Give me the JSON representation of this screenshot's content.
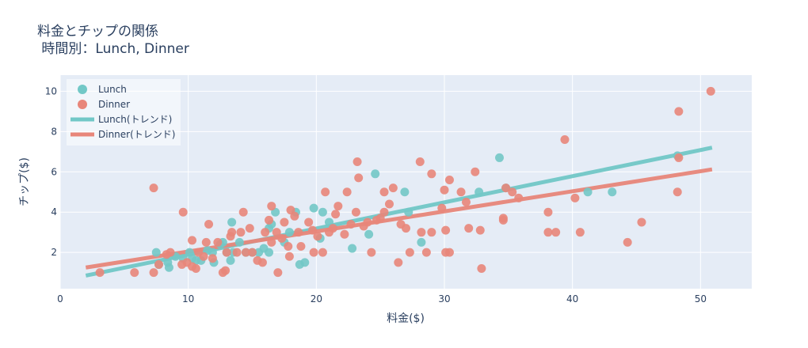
{
  "chart_data": {
    "type": "scatter",
    "title_line1": "料金とチップの関係",
    "title_line2": " 時間別：Lunch, Dinner",
    "xlabel": "料金($)",
    "ylabel": "チップ($)",
    "xlim": [
      0,
      54
    ],
    "ylim": [
      0.2,
      10.8
    ],
    "x_ticks": [
      0,
      10,
      20,
      30,
      40,
      50
    ],
    "y_ticks": [
      2,
      4,
      6,
      8,
      10
    ],
    "grid": true,
    "legend_position": "top-left",
    "plot_bg": "#e5ecf6",
    "series": [
      {
        "name": "Lunch",
        "color": "#72c8c7",
        "points": [
          [
            7.5,
            2.0
          ],
          [
            7.7,
            1.4
          ],
          [
            8.4,
            1.5
          ],
          [
            8.5,
            1.25
          ],
          [
            9.0,
            1.8
          ],
          [
            9.6,
            1.7
          ],
          [
            10.1,
            2.0
          ],
          [
            10.3,
            1.7
          ],
          [
            10.6,
            1.6
          ],
          [
            11.0,
            1.6
          ],
          [
            11.5,
            2.1
          ],
          [
            11.9,
            2.0
          ],
          [
            12.0,
            1.5
          ],
          [
            12.5,
            2.4
          ],
          [
            12.7,
            2.5
          ],
          [
            13.0,
            2.0
          ],
          [
            13.3,
            1.6
          ],
          [
            13.4,
            3.5
          ],
          [
            13.5,
            2.0
          ],
          [
            14.0,
            2.5
          ],
          [
            14.5,
            2.0
          ],
          [
            15.0,
            2.0
          ],
          [
            15.5,
            2.0
          ],
          [
            15.9,
            2.2
          ],
          [
            16.3,
            2.0
          ],
          [
            16.3,
            3.2
          ],
          [
            16.5,
            3.4
          ],
          [
            16.8,
            4.0
          ],
          [
            17.5,
            2.5
          ],
          [
            17.9,
            3.0
          ],
          [
            18.4,
            4.0
          ],
          [
            18.7,
            1.4
          ],
          [
            19.1,
            1.5
          ],
          [
            19.8,
            4.2
          ],
          [
            20.3,
            2.7
          ],
          [
            20.5,
            4.0
          ],
          [
            21.0,
            3.5
          ],
          [
            22.8,
            2.2
          ],
          [
            24.1,
            2.9
          ],
          [
            24.6,
            5.9
          ],
          [
            26.9,
            5.0
          ],
          [
            27.2,
            4.0
          ],
          [
            28.2,
            2.5
          ],
          [
            32.7,
            5.0
          ],
          [
            34.3,
            6.7
          ],
          [
            34.8,
            5.2
          ],
          [
            41.2,
            5.0
          ],
          [
            43.1,
            5.0
          ],
          [
            48.2,
            6.8
          ]
        ]
      },
      {
        "name": "Dinner",
        "color": "#e8867a",
        "points": [
          [
            3.1,
            1.0
          ],
          [
            5.8,
            1.0
          ],
          [
            7.3,
            5.2
          ],
          [
            7.3,
            1.0
          ],
          [
            7.7,
            1.4
          ],
          [
            8.3,
            1.9
          ],
          [
            8.6,
            2.0
          ],
          [
            9.5,
            1.4
          ],
          [
            9.6,
            4.0
          ],
          [
            9.9,
            1.5
          ],
          [
            10.3,
            2.6
          ],
          [
            10.3,
            1.3
          ],
          [
            10.6,
            1.2
          ],
          [
            10.8,
            2.0
          ],
          [
            11.2,
            1.8
          ],
          [
            11.4,
            2.5
          ],
          [
            11.6,
            3.4
          ],
          [
            11.9,
            1.7
          ],
          [
            12.3,
            2.5
          ],
          [
            12.7,
            1.0
          ],
          [
            12.9,
            1.1
          ],
          [
            13.0,
            2.0
          ],
          [
            13.3,
            2.8
          ],
          [
            13.4,
            3.0
          ],
          [
            13.8,
            2.0
          ],
          [
            14.1,
            3.0
          ],
          [
            14.3,
            4.0
          ],
          [
            14.5,
            2.0
          ],
          [
            14.8,
            3.2
          ],
          [
            15.0,
            2.0
          ],
          [
            15.4,
            1.6
          ],
          [
            15.8,
            1.5
          ],
          [
            16.0,
            3.0
          ],
          [
            16.3,
            3.6
          ],
          [
            16.5,
            2.5
          ],
          [
            16.5,
            4.3
          ],
          [
            16.9,
            3.0
          ],
          [
            17.0,
            1.0
          ],
          [
            17.3,
            2.7
          ],
          [
            17.5,
            3.5
          ],
          [
            17.8,
            2.3
          ],
          [
            17.9,
            1.8
          ],
          [
            18.0,
            4.1
          ],
          [
            18.3,
            3.8
          ],
          [
            18.6,
            3.0
          ],
          [
            18.8,
            2.3
          ],
          [
            19.4,
            3.5
          ],
          [
            19.7,
            3.1
          ],
          [
            19.8,
            2.0
          ],
          [
            20.1,
            2.8
          ],
          [
            20.5,
            2.0
          ],
          [
            20.7,
            5.0
          ],
          [
            21.0,
            3.0
          ],
          [
            21.3,
            3.2
          ],
          [
            21.5,
            3.9
          ],
          [
            21.7,
            4.3
          ],
          [
            22.2,
            2.9
          ],
          [
            22.4,
            5.0
          ],
          [
            22.7,
            3.4
          ],
          [
            23.1,
            4.0
          ],
          [
            23.2,
            6.5
          ],
          [
            23.3,
            5.7
          ],
          [
            23.7,
            3.3
          ],
          [
            24.0,
            3.5
          ],
          [
            24.3,
            2.0
          ],
          [
            24.7,
            3.6
          ],
          [
            25.0,
            3.7
          ],
          [
            25.3,
            4.0
          ],
          [
            25.3,
            5.0
          ],
          [
            25.7,
            4.4
          ],
          [
            26.0,
            5.2
          ],
          [
            26.4,
            1.5
          ],
          [
            26.6,
            3.4
          ],
          [
            27.0,
            3.2
          ],
          [
            27.3,
            2.0
          ],
          [
            28.1,
            6.5
          ],
          [
            28.2,
            3.0
          ],
          [
            28.6,
            2.0
          ],
          [
            29.0,
            5.9
          ],
          [
            29.0,
            3.0
          ],
          [
            29.8,
            4.2
          ],
          [
            30.0,
            5.1
          ],
          [
            30.1,
            3.1
          ],
          [
            30.1,
            2.0
          ],
          [
            30.4,
            5.6
          ],
          [
            30.4,
            2.0
          ],
          [
            31.3,
            5.0
          ],
          [
            31.7,
            4.5
          ],
          [
            31.9,
            3.2
          ],
          [
            32.4,
            6.0
          ],
          [
            32.8,
            3.1
          ],
          [
            32.9,
            1.2
          ],
          [
            34.6,
            3.6
          ],
          [
            34.6,
            3.7
          ],
          [
            34.8,
            5.2
          ],
          [
            35.3,
            5.0
          ],
          [
            35.8,
            4.7
          ],
          [
            38.1,
            4.0
          ],
          [
            38.1,
            3.0
          ],
          [
            38.7,
            3.0
          ],
          [
            39.4,
            7.6
          ],
          [
            40.2,
            4.7
          ],
          [
            40.6,
            3.0
          ],
          [
            44.3,
            2.5
          ],
          [
            45.4,
            3.5
          ],
          [
            48.2,
            5.0
          ],
          [
            48.3,
            9.0
          ],
          [
            48.3,
            6.7
          ],
          [
            50.8,
            10.0
          ]
        ]
      }
    ],
    "trendlines": [
      {
        "name": "Lunch(トレンド)",
        "color": "#72c8c7",
        "x": [
          2.0,
          50.9
        ],
        "y": [
          0.85,
          7.2
        ]
      },
      {
        "name": "Dinner(トレンド)",
        "color": "#e8867a",
        "x": [
          2.0,
          50.9
        ],
        "y": [
          1.25,
          6.12
        ]
      }
    ]
  }
}
